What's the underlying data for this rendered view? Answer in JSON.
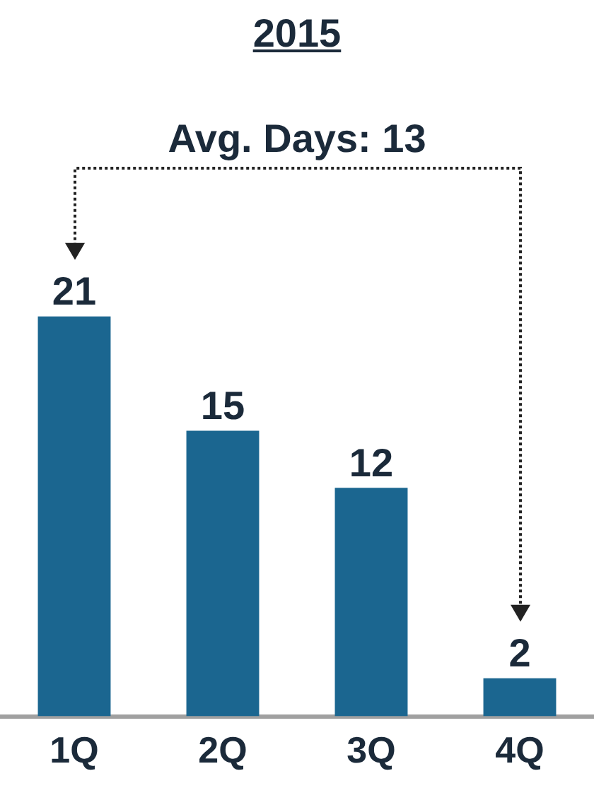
{
  "chart_data": {
    "type": "bar",
    "title": "2015",
    "categories": [
      "1Q",
      "2Q",
      "3Q",
      "4Q"
    ],
    "values": [
      21,
      15,
      12,
      2
    ],
    "color": "#1b6690",
    "data_labels": true,
    "annotations": [
      "Avg. Days: 13"
    ],
    "grid": false,
    "legend": false
  }
}
